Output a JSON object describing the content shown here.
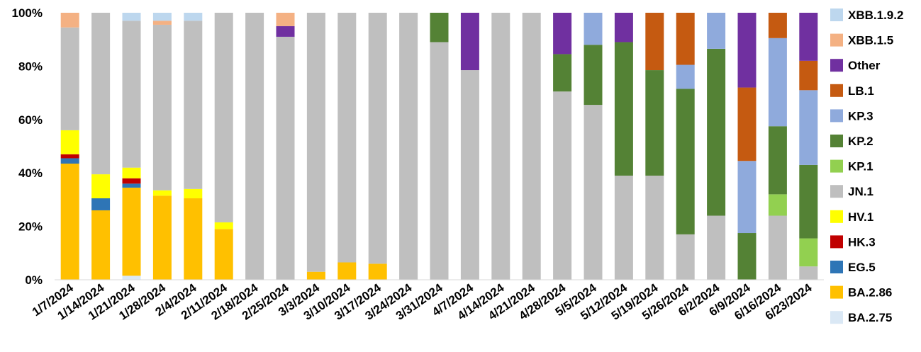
{
  "chart_data": {
    "type": "bar",
    "stacked": true,
    "percent": true,
    "title": "",
    "xlabel": "",
    "ylabel": "",
    "ylim": [
      0,
      100
    ],
    "y_ticks": [
      "0%",
      "20%",
      "40%",
      "60%",
      "80%",
      "100%"
    ],
    "grid": false,
    "legend_position": "right",
    "categories": [
      "1/7/2024",
      "1/14/2024",
      "1/21/2024",
      "1/28/2024",
      "2/4/2024",
      "2/11/2024",
      "2/18/2024",
      "2/25/2024",
      "3/3/2024",
      "3/10/2024",
      "3/17/2024",
      "3/24/2024",
      "3/31/2024",
      "4/7/2024",
      "4/14/2024",
      "4/21/2024",
      "4/28/2024",
      "5/5/2024",
      "5/12/2024",
      "5/19/2024",
      "5/26/2024",
      "6/2/2024",
      "6/9/2024",
      "6/16/2024",
      "6/23/2024"
    ],
    "series": [
      {
        "name": "BA.2.75",
        "color": "#dae8f5",
        "values": [
          0,
          0,
          1.5,
          0,
          0,
          0,
          0,
          0,
          0,
          0,
          0,
          0,
          0,
          0,
          0,
          0,
          0,
          0,
          0,
          0,
          0,
          0,
          0,
          0,
          0
        ]
      },
      {
        "name": "BA.2.86",
        "color": "#ffc000",
        "values": [
          43.5,
          26,
          33,
          31.5,
          30.5,
          19,
          0,
          0,
          3,
          6.5,
          6,
          0,
          0,
          0,
          0,
          0,
          0,
          0,
          0,
          0,
          0,
          0,
          0,
          0,
          0
        ]
      },
      {
        "name": "EG.5",
        "color": "#2e75b6",
        "values": [
          2,
          4.5,
          1.5,
          0,
          0,
          0,
          0,
          0,
          0,
          0,
          0,
          0,
          0,
          0,
          0,
          0,
          0,
          0,
          0,
          0,
          0,
          0,
          0,
          0,
          0
        ]
      },
      {
        "name": "HK.3",
        "color": "#c00000",
        "values": [
          1.5,
          0,
          2,
          0,
          0,
          0,
          0,
          0,
          0,
          0,
          0,
          0,
          0,
          0,
          0,
          0,
          0,
          0,
          0,
          0,
          0,
          0,
          0,
          0,
          0
        ]
      },
      {
        "name": "HV.1",
        "color": "#ffff00",
        "values": [
          9,
          9,
          4,
          2,
          3.5,
          2.5,
          0,
          0,
          0,
          0,
          0,
          0,
          0,
          0,
          0,
          0,
          0,
          0,
          0,
          0,
          0,
          0,
          0,
          0,
          0
        ]
      },
      {
        "name": "JN.1",
        "color": "#bfbfbf",
        "values": [
          38.5,
          60.5,
          55,
          62,
          63,
          78.5,
          100,
          91,
          97,
          93.5,
          94,
          100,
          89,
          78.5,
          100,
          100,
          70.5,
          65.5,
          39,
          39,
          17,
          24,
          0,
          24,
          5
        ]
      },
      {
        "name": "KP.1",
        "color": "#92d050",
        "values": [
          0,
          0,
          0,
          0,
          0,
          0,
          0,
          0,
          0,
          0,
          0,
          0,
          0,
          0,
          0,
          0,
          0,
          0,
          0,
          0,
          0,
          0,
          0,
          8,
          10.5
        ]
      },
      {
        "name": "KP.2",
        "color": "#548235",
        "values": [
          0,
          0,
          0,
          0,
          0,
          0,
          0,
          0,
          0,
          0,
          0,
          0,
          11,
          0,
          0,
          0,
          14,
          22.5,
          50,
          39.5,
          54.5,
          62.5,
          17.5,
          25.5,
          27.5
        ]
      },
      {
        "name": "KP.3",
        "color": "#8faadc",
        "values": [
          0,
          0,
          0,
          0,
          0,
          0,
          0,
          0,
          0,
          0,
          0,
          0,
          0,
          0,
          0,
          0,
          0,
          12,
          0,
          0,
          9,
          13.5,
          27,
          33,
          28
        ]
      },
      {
        "name": "LB.1",
        "color": "#c55a11",
        "values": [
          0,
          0,
          0,
          0,
          0,
          0,
          0,
          0,
          0,
          0,
          0,
          0,
          0,
          0,
          0,
          0,
          0,
          0,
          0,
          21.5,
          19.5,
          0,
          27.5,
          9.5,
          11
        ]
      },
      {
        "name": "Other",
        "color": "#7030a0",
        "values": [
          0,
          0,
          0,
          0,
          0,
          0,
          0,
          4,
          0,
          0,
          0,
          0,
          0,
          21.5,
          0,
          0,
          15.5,
          0,
          11,
          0,
          0,
          0,
          28,
          0,
          18
        ]
      },
      {
        "name": "XBB.1.5",
        "color": "#f4b183",
        "values": [
          5.5,
          0,
          0,
          1.5,
          0,
          0,
          0,
          5,
          0,
          0,
          0,
          0,
          0,
          0,
          0,
          0,
          0,
          0,
          0,
          0,
          0,
          0,
          0,
          0,
          0
        ]
      },
      {
        "name": "XBB.1.9.2",
        "color": "#bdd7ee",
        "values": [
          0,
          0,
          3,
          3,
          3,
          0,
          0,
          0,
          0,
          0,
          0,
          0,
          0,
          0,
          0,
          0,
          0,
          0,
          0,
          0,
          0,
          0,
          0,
          0,
          0
        ]
      }
    ],
    "legend_order": [
      "XBB.1.9.2",
      "XBB.1.5",
      "Other",
      "LB.1",
      "KP.3",
      "KP.2",
      "KP.1",
      "JN.1",
      "HV.1",
      "HK.3",
      "EG.5",
      "BA.2.86",
      "BA.2.75"
    ]
  }
}
